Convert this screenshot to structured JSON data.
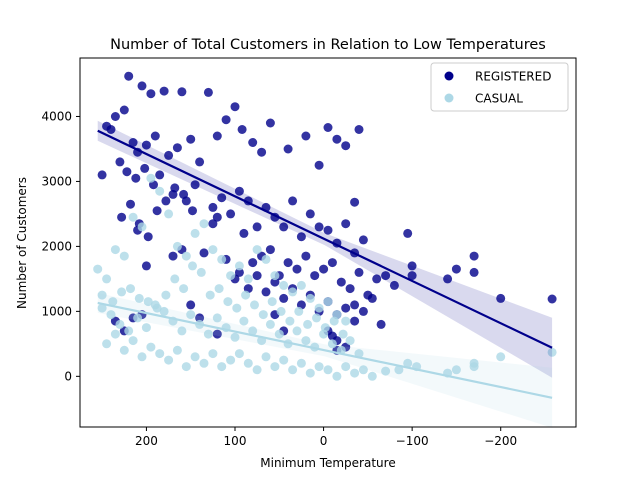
{
  "chart_data": {
    "type": "scatter",
    "title": "Number of Total Customers in Relation to Low Temperatures",
    "xlabel": "Minimum Temperature",
    "ylabel": "Number of Customers",
    "xlim": [
      275,
      -285
    ],
    "ylim": [
      -780,
      4900
    ],
    "x_inverted": true,
    "xticks": [
      200,
      100,
      0,
      -100,
      -200
    ],
    "xtick_labels": [
      "200",
      "100",
      "0",
      "−100",
      "−200"
    ],
    "yticks": [
      0,
      1000,
      2000,
      3000,
      4000
    ],
    "ytick_labels": [
      "0",
      "1000",
      "2000",
      "3000",
      "4000"
    ],
    "grid": false,
    "legend_position": "top-right",
    "series": [
      {
        "name": "REGISTERED",
        "color": "#00008b",
        "marker": "circle",
        "regression": {
          "x1": 255,
          "y1": 3780,
          "x2": -258,
          "y2": 440,
          "band_color": "#00008b"
        },
        "points": [
          [
            240,
            3800
          ],
          [
            220,
            4620
          ],
          [
            225,
            4100
          ],
          [
            205,
            4470
          ],
          [
            195,
            4350
          ],
          [
            180,
            4390
          ],
          [
            160,
            4380
          ],
          [
            130,
            4370
          ],
          [
            250,
            3100
          ],
          [
            245,
            3850
          ],
          [
            235,
            4000
          ],
          [
            215,
            3600
          ],
          [
            210,
            3450
          ],
          [
            200,
            3560
          ],
          [
            190,
            3700
          ],
          [
            175,
            3400
          ],
          [
            165,
            3520
          ],
          [
            150,
            3650
          ],
          [
            140,
            3300
          ],
          [
            120,
            3700
          ],
          [
            110,
            3950
          ],
          [
            100,
            4150
          ],
          [
            92,
            3800
          ],
          [
            80,
            3600
          ],
          [
            70,
            3450
          ],
          [
            60,
            3900
          ],
          [
            40,
            3500
          ],
          [
            20,
            3700
          ],
          [
            5,
            3250
          ],
          [
            -5,
            3830
          ],
          [
            -15,
            3650
          ],
          [
            -25,
            3550
          ],
          [
            -40,
            3800
          ],
          [
            230,
            3300
          ],
          [
            222,
            3150
          ],
          [
            212,
            3050
          ],
          [
            202,
            3200
          ],
          [
            192,
            2950
          ],
          [
            185,
            3100
          ],
          [
            170,
            2800
          ],
          [
            155,
            2700
          ],
          [
            145,
            2950
          ],
          [
            125,
            2600
          ],
          [
            115,
            2750
          ],
          [
            105,
            2500
          ],
          [
            95,
            2850
          ],
          [
            85,
            2700
          ],
          [
            75,
            2300
          ],
          [
            65,
            2600
          ],
          [
            55,
            2450
          ],
          [
            45,
            2300
          ],
          [
            35,
            2700
          ],
          [
            25,
            2150
          ],
          [
            15,
            2500
          ],
          [
            5,
            2300
          ],
          [
            -5,
            2250
          ],
          [
            -15,
            2050
          ],
          [
            -25,
            2350
          ],
          [
            -35,
            1900
          ],
          [
            -45,
            2100
          ],
          [
            -35,
            2680
          ],
          [
            -95,
            2200
          ],
          [
            228,
            2450
          ],
          [
            218,
            2650
          ],
          [
            208,
            2350
          ],
          [
            198,
            2150
          ],
          [
            188,
            2550
          ],
          [
            178,
            2700
          ],
          [
            168,
            2900
          ],
          [
            158,
            2800
          ],
          [
            148,
            2550
          ],
          [
            210,
            2250
          ],
          [
            200,
            1700
          ],
          [
            170,
            1850
          ],
          [
            160,
            1950
          ],
          [
            135,
            1900
          ],
          [
            125,
            2350
          ],
          [
            120,
            2450
          ],
          [
            90,
            2200
          ],
          [
            80,
            1750
          ],
          [
            70,
            1850
          ],
          [
            60,
            1950
          ],
          [
            50,
            1550
          ],
          [
            40,
            1750
          ],
          [
            30,
            1650
          ],
          [
            20,
            1850
          ],
          [
            10,
            1550
          ],
          [
            0,
            1650
          ],
          [
            -10,
            1750
          ],
          [
            -20,
            1450
          ],
          [
            -30,
            1350
          ],
          [
            -40,
            1600
          ],
          [
            -50,
            1250
          ],
          [
            -60,
            1500
          ],
          [
            -70,
            1550
          ],
          [
            -80,
            1400
          ],
          [
            -100,
            1700
          ],
          [
            -100,
            1550
          ],
          [
            -140,
            1500
          ],
          [
            -150,
            1650
          ],
          [
            -170,
            1850
          ],
          [
            -170,
            1600
          ],
          [
            -200,
            1200
          ],
          [
            -258,
            1190
          ],
          [
            110,
            1800
          ],
          [
            100,
            1500
          ],
          [
            95,
            1600
          ],
          [
            85,
            1350
          ],
          [
            75,
            1550
          ],
          [
            65,
            1300
          ],
          [
            55,
            1450
          ],
          [
            45,
            1200
          ],
          [
            35,
            1350
          ],
          [
            25,
            1100
          ],
          [
            15,
            1250
          ],
          [
            5,
            1000
          ],
          [
            -5,
            1150
          ],
          [
            -15,
            950
          ],
          [
            -25,
            1050
          ],
          [
            -35,
            850
          ],
          [
            -45,
            1000
          ],
          [
            -5,
            700
          ],
          [
            -15,
            550
          ],
          [
            -25,
            450
          ],
          [
            -35,
            1100
          ],
          [
            -55,
            1200
          ],
          [
            -65,
            800
          ],
          [
            -15,
            400
          ],
          [
            235,
            850
          ],
          [
            225,
            700
          ],
          [
            215,
            900
          ],
          [
            205,
            950
          ],
          [
            150,
            1100
          ],
          [
            140,
            900
          ],
          [
            120,
            650
          ],
          [
            55,
            950
          ],
          [
            45,
            700
          ],
          [
            -10,
            620
          ]
        ]
      },
      {
        "name": "CASUAL",
        "color": "#add8e6",
        "marker": "circle",
        "regression": {
          "x1": 255,
          "y1": 1130,
          "x2": -258,
          "y2": -330,
          "band_color": "#add8e6"
        },
        "points": [
          [
            255,
            1650
          ],
          [
            245,
            1500
          ],
          [
            235,
            1950
          ],
          [
            225,
            1850
          ],
          [
            215,
            2450
          ],
          [
            205,
            2300
          ],
          [
            195,
            3050
          ],
          [
            185,
            2850
          ],
          [
            175,
            2500
          ],
          [
            165,
            2000
          ],
          [
            155,
            1850
          ],
          [
            145,
            2200
          ],
          [
            135,
            2350
          ],
          [
            125,
            1950
          ],
          [
            115,
            1800
          ],
          [
            105,
            1550
          ],
          [
            95,
            1700
          ],
          [
            85,
            1500
          ],
          [
            75,
            1950
          ],
          [
            65,
            1800
          ],
          [
            55,
            1550
          ],
          [
            45,
            1400
          ],
          [
            35,
            1300
          ],
          [
            25,
            1400
          ],
          [
            15,
            1200
          ],
          [
            5,
            1050
          ],
          [
            -5,
            1150
          ],
          [
            -15,
            950
          ],
          [
            -25,
            850
          ],
          [
            250,
            1050
          ],
          [
            240,
            950
          ],
          [
            230,
            800
          ],
          [
            220,
            700
          ],
          [
            210,
            900
          ],
          [
            200,
            750
          ],
          [
            190,
            1100
          ],
          [
            180,
            1000
          ],
          [
            170,
            850
          ],
          [
            160,
            700
          ],
          [
            150,
            950
          ],
          [
            140,
            800
          ],
          [
            130,
            650
          ],
          [
            120,
            900
          ],
          [
            110,
            750
          ],
          [
            100,
            600
          ],
          [
            90,
            850
          ],
          [
            80,
            700
          ],
          [
            70,
            550
          ],
          [
            60,
            800
          ],
          [
            50,
            650
          ],
          [
            40,
            500
          ],
          [
            30,
            700
          ],
          [
            20,
            550
          ],
          [
            10,
            450
          ],
          [
            0,
            650
          ],
          [
            -10,
            500
          ],
          [
            -20,
            400
          ],
          [
            -30,
            550
          ],
          [
            -40,
            350
          ],
          [
            245,
            500
          ],
          [
            235,
            650
          ],
          [
            225,
            400
          ],
          [
            215,
            550
          ],
          [
            205,
            300
          ],
          [
            195,
            450
          ],
          [
            185,
            350
          ],
          [
            175,
            250
          ],
          [
            165,
            400
          ],
          [
            155,
            150
          ],
          [
            145,
            300
          ],
          [
            135,
            200
          ],
          [
            125,
            350
          ],
          [
            115,
            150
          ],
          [
            105,
            250
          ],
          [
            95,
            350
          ],
          [
            85,
            200
          ],
          [
            75,
            100
          ],
          [
            65,
            300
          ],
          [
            55,
            150
          ],
          [
            45,
            250
          ],
          [
            35,
            100
          ],
          [
            25,
            200
          ],
          [
            15,
            50
          ],
          [
            5,
            150
          ],
          [
            -5,
            100
          ],
          [
            -15,
            0
          ],
          [
            -25,
            150
          ],
          [
            -35,
            50
          ],
          [
            -45,
            100
          ],
          [
            -55,
            0
          ],
          [
            -70,
            80
          ],
          [
            -85,
            100
          ],
          [
            -95,
            200
          ],
          [
            -105,
            150
          ],
          [
            -140,
            50
          ],
          [
            -150,
            100
          ],
          [
            -170,
            200
          ],
          [
            -170,
            150
          ],
          [
            -200,
            300
          ],
          [
            -258,
            370
          ],
          [
            250,
            1250
          ],
          [
            238,
            1150
          ],
          [
            228,
            1300
          ],
          [
            218,
            1350
          ],
          [
            208,
            1200
          ],
          [
            198,
            1150
          ],
          [
            188,
            1050
          ],
          [
            178,
            1250
          ],
          [
            168,
            1500
          ],
          [
            158,
            1350
          ],
          [
            148,
            1700
          ],
          [
            138,
            1600
          ],
          [
            128,
            1250
          ],
          [
            118,
            1350
          ],
          [
            108,
            1150
          ],
          [
            98,
            1050
          ],
          [
            88,
            1250
          ],
          [
            78,
            1100
          ],
          [
            68,
            950
          ],
          [
            58,
            1150
          ],
          [
            48,
            1000
          ],
          [
            38,
            850
          ],
          [
            28,
            1000
          ],
          [
            18,
            800
          ],
          [
            8,
            900
          ],
          [
            -2,
            750
          ],
          [
            -12,
            850
          ],
          [
            -22,
            650
          ]
        ]
      }
    ]
  }
}
